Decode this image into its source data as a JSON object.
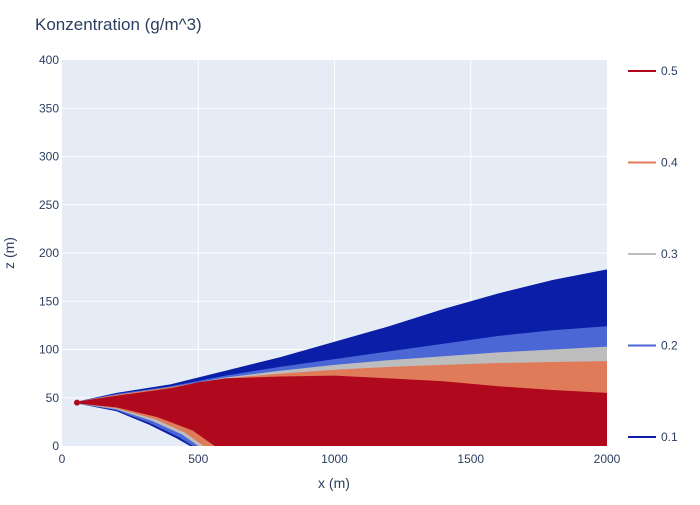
{
  "chart_data": {
    "type": "contour",
    "title": "Konzentration (g/m^3)",
    "xlabel": "x (m)",
    "ylabel": "z (m)",
    "xlim": [
      0,
      2000
    ],
    "ylim": [
      0,
      400
    ],
    "x_ticks": [
      0,
      500,
      1000,
      1500,
      2000
    ],
    "y_ticks": [
      0,
      50,
      100,
      150,
      200,
      250,
      300,
      350,
      400
    ],
    "grid": true,
    "legend_position": "right",
    "source_point": {
      "x": 55,
      "z": 45
    },
    "levels": [
      {
        "label": "0.1",
        "value": 0.1,
        "color": "#0a1ea8",
        "upper": [
          [
            55,
            46
          ],
          [
            200,
            55
          ],
          [
            400,
            64
          ],
          [
            600,
            78
          ],
          [
            800,
            92
          ],
          [
            1000,
            108
          ],
          [
            1200,
            124
          ],
          [
            1400,
            142
          ],
          [
            1600,
            158
          ],
          [
            1800,
            172
          ],
          [
            2000,
            183
          ]
        ],
        "lower": [
          [
            55,
            44
          ],
          [
            200,
            36
          ],
          [
            320,
            22
          ],
          [
            420,
            8
          ],
          [
            470,
            0
          ]
        ]
      },
      {
        "label": "0.2",
        "value": 0.2,
        "color": "#4b67d6",
        "upper": [
          [
            55,
            46
          ],
          [
            200,
            54
          ],
          [
            400,
            62
          ],
          [
            600,
            73
          ],
          [
            800,
            82
          ],
          [
            1000,
            90
          ],
          [
            1200,
            98
          ],
          [
            1400,
            106
          ],
          [
            1600,
            114
          ],
          [
            1800,
            120
          ],
          [
            2000,
            124
          ]
        ],
        "lower": [
          [
            55,
            44
          ],
          [
            200,
            37
          ],
          [
            320,
            24
          ],
          [
            430,
            9
          ],
          [
            480,
            0
          ]
        ]
      },
      {
        "label": "0.3",
        "value": 0.3,
        "color": "#bdbdbd",
        "upper": [
          [
            55,
            46
          ],
          [
            200,
            53
          ],
          [
            400,
            61
          ],
          [
            600,
            71
          ],
          [
            800,
            78
          ],
          [
            1000,
            84
          ],
          [
            1200,
            89
          ],
          [
            1400,
            93
          ],
          [
            1600,
            97
          ],
          [
            1800,
            100
          ],
          [
            2000,
            103
          ]
        ],
        "lower": [
          [
            55,
            44
          ],
          [
            200,
            38
          ],
          [
            330,
            26
          ],
          [
            440,
            12
          ],
          [
            500,
            0
          ]
        ]
      },
      {
        "label": "0.4",
        "value": 0.4,
        "color": "#e07b5a",
        "upper": [
          [
            55,
            46
          ],
          [
            200,
            53
          ],
          [
            400,
            61
          ],
          [
            600,
            70
          ],
          [
            800,
            75
          ],
          [
            1000,
            79
          ],
          [
            1200,
            82
          ],
          [
            1400,
            84
          ],
          [
            1600,
            86
          ],
          [
            1800,
            87
          ],
          [
            2000,
            88
          ]
        ],
        "lower": [
          [
            55,
            44
          ],
          [
            200,
            39
          ],
          [
            340,
            28
          ],
          [
            450,
            14
          ],
          [
            520,
            0
          ]
        ]
      },
      {
        "label": "0.5",
        "value": 0.5,
        "color": "#b0081d",
        "upper": [
          [
            55,
            46
          ],
          [
            200,
            52
          ],
          [
            400,
            60
          ],
          [
            500,
            66
          ],
          [
            600,
            70
          ],
          [
            800,
            72
          ],
          [
            1000,
            73
          ],
          [
            1200,
            70
          ],
          [
            1400,
            67
          ],
          [
            1600,
            62
          ],
          [
            1800,
            58
          ],
          [
            2000,
            55
          ]
        ],
        "lower": [
          [
            55,
            44
          ],
          [
            200,
            40
          ],
          [
            350,
            30
          ],
          [
            480,
            16
          ],
          [
            560,
            0
          ]
        ]
      }
    ]
  }
}
